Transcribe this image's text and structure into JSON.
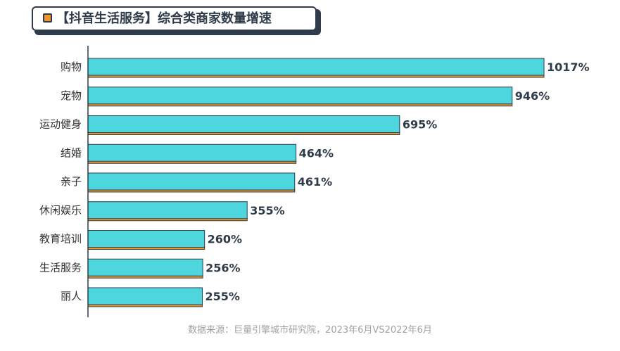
{
  "title": "【抖音生活服务】综合类商家数量增速",
  "source": "数据来源：巨量引擎城市研究院，2023年6月VS2022年6月",
  "colors": {
    "bar_fill": "#4dd6de",
    "bar_shadow": "#e8962e",
    "outline": "#2f3b4a",
    "accent": "#f0952b"
  },
  "chart_data": {
    "type": "bar",
    "orientation": "horizontal",
    "title": "【抖音生活服务】综合类商家数量增速",
    "categories": [
      "购物",
      "宠物",
      "运动健身",
      "结婚",
      "亲子",
      "休闲娱乐",
      "教育培训",
      "生活服务",
      "丽人"
    ],
    "values": [
      1017,
      946,
      695,
      464,
      461,
      355,
      260,
      256,
      255
    ],
    "value_labels": [
      "1017%",
      "946%",
      "695%",
      "464%",
      "461%",
      "355%",
      "260%",
      "256%",
      "255%"
    ],
    "unit": "%",
    "xlim": [
      0,
      1017
    ],
    "grid": false,
    "legend": "none"
  }
}
